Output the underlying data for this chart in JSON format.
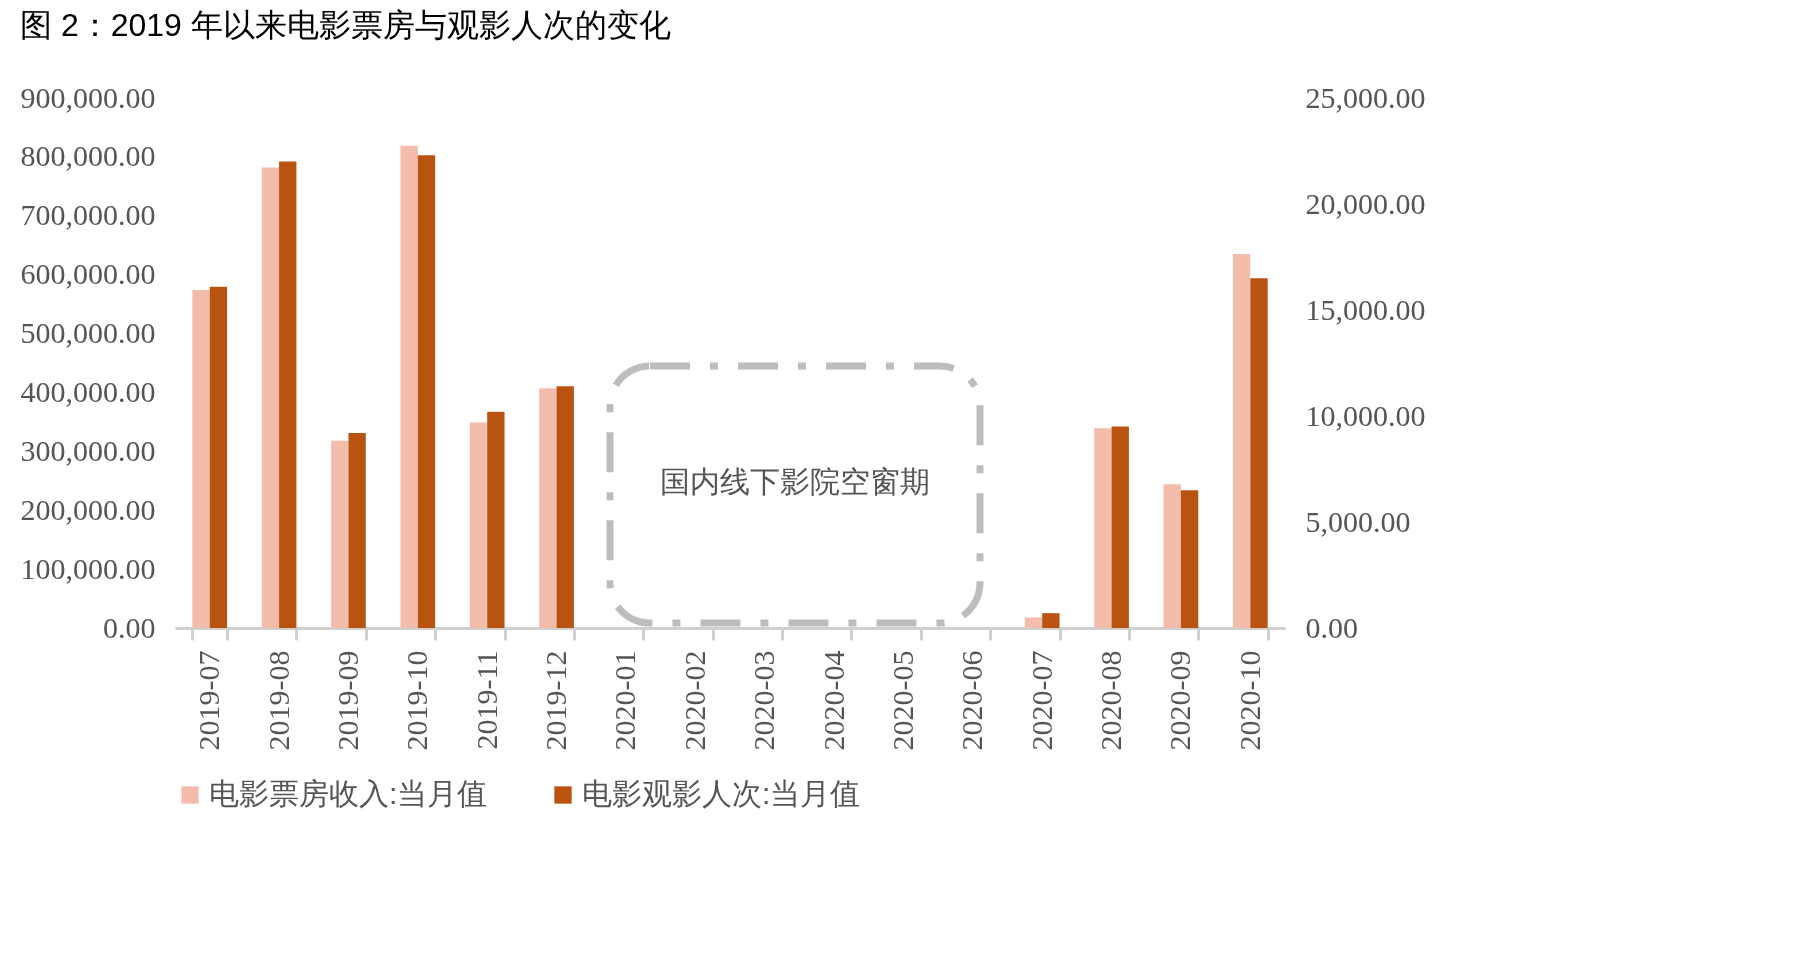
{
  "chart_data": {
    "type": "bar",
    "title": "图 2：2019 年以来电影票房与观影人次的变化",
    "categories": [
      "2019-07",
      "2019-08",
      "2019-09",
      "2019-10",
      "2019-11",
      "2019-12",
      "2020-01",
      "2020-02",
      "2020-03",
      "2020-04",
      "2020-05",
      "2020-06",
      "2020-07",
      "2020-08",
      "2020-09",
      "2020-10"
    ],
    "series": [
      {
        "name": "电影票房收入:当月值",
        "color": "#f4bcaa",
        "values": [
          574000,
          782000,
          318000,
          819000,
          349000,
          407000,
          0,
          0,
          0,
          0,
          0,
          0,
          18000,
          339000,
          244000,
          635000
        ]
      },
      {
        "name": "电影观影人次:当月值",
        "color": "#b85410",
        "axis": "y2",
        "values": [
          16100,
          22000,
          9200,
          22300,
          10200,
          11400,
          0,
          0,
          0,
          0,
          0,
          0,
          700,
          9500,
          6500,
          16500
        ]
      }
    ],
    "ylim": [
      0,
      900000
    ],
    "yticks": [
      {
        "value": 0,
        "label": "0.00"
      },
      {
        "value": 100000,
        "label": "100,000.00"
      },
      {
        "value": 200000,
        "label": "200,000.00"
      },
      {
        "value": 300000,
        "label": "300,000.00"
      },
      {
        "value": 400000,
        "label": "400,000.00"
      },
      {
        "value": 500000,
        "label": "500,000.00"
      },
      {
        "value": 600000,
        "label": "600,000.00"
      },
      {
        "value": 700000,
        "label": "700,000.00"
      },
      {
        "value": 800000,
        "label": "800,000.00"
      },
      {
        "value": 900000,
        "label": "900,000.00"
      }
    ],
    "y2lim": [
      0,
      25000
    ],
    "y2ticks": [
      {
        "value": 0,
        "label": "0.00"
      },
      {
        "value": 5000,
        "label": "5,000.00"
      },
      {
        "value": 10000,
        "label": "10,000.00"
      },
      {
        "value": 15000,
        "label": "15,000.00"
      },
      {
        "value": 20000,
        "label": "20,000.00"
      },
      {
        "value": 25000,
        "label": "25,000.00"
      }
    ],
    "annotations": [
      "国内线下影院空窗期"
    ],
    "grid": false,
    "legend": "bottom"
  }
}
